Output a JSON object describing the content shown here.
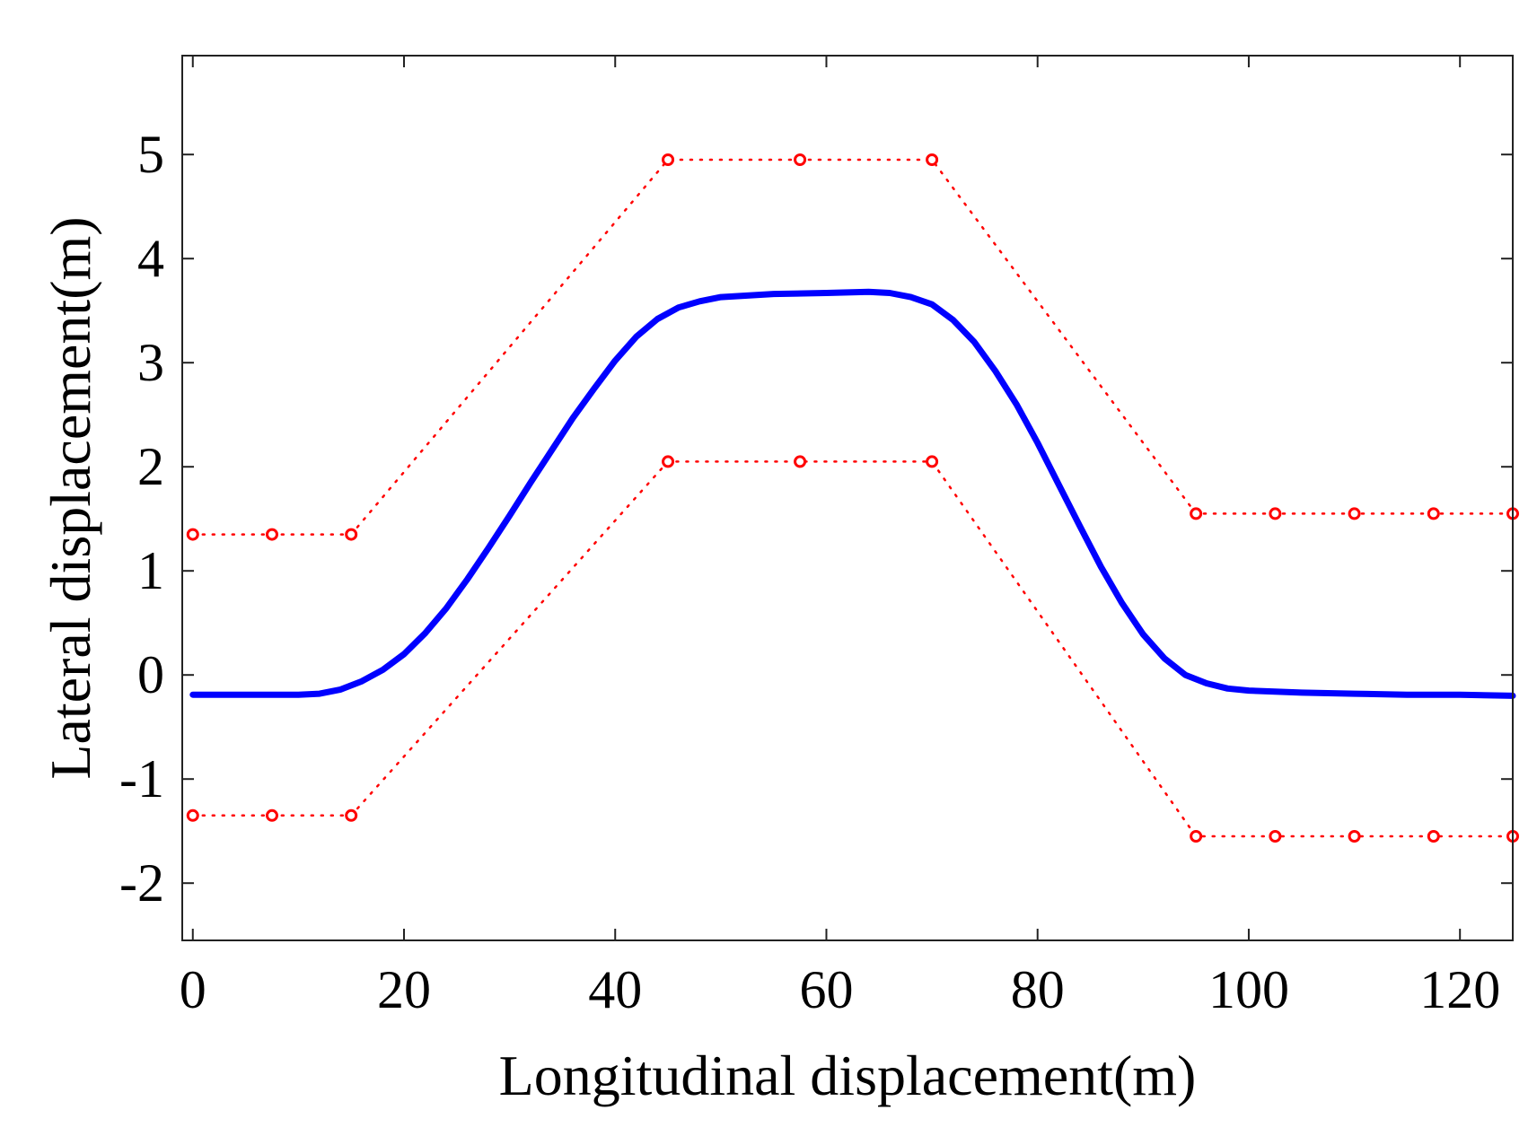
{
  "chart_data": {
    "type": "line",
    "xlabel": "Longitudinal displacement(m)",
    "ylabel": "Lateral displacement(m)",
    "xlim": [
      -1,
      125
    ],
    "ylim": [
      -2.55,
      5.95
    ],
    "xticks": [
      0,
      20,
      40,
      60,
      80,
      100,
      120
    ],
    "yticks": [
      -2,
      -1,
      0,
      1,
      2,
      3,
      4,
      5
    ],
    "xtick_labels": [
      "0",
      "20",
      "40",
      "60",
      "80",
      "100",
      "120"
    ],
    "ytick_labels": [
      "-2",
      "-1",
      "0",
      "1",
      "2",
      "3",
      "4",
      "5"
    ],
    "grid": false,
    "colors": {
      "trajectory": "#0000ff",
      "boundary": "#ff0000"
    },
    "series": [
      {
        "style": "solid",
        "x": [
          0,
          5,
          10,
          12,
          14,
          16,
          18,
          20,
          22,
          24,
          26,
          28,
          30,
          32,
          34,
          36,
          38,
          40,
          42,
          44,
          46,
          48,
          50,
          55,
          60,
          64,
          66,
          68,
          70,
          72,
          74,
          76,
          78,
          80,
          82,
          84,
          86,
          88,
          90,
          92,
          94,
          96,
          98,
          100,
          105,
          110,
          115,
          120,
          125
        ],
        "y": [
          -0.19,
          -0.19,
          -0.19,
          -0.18,
          -0.14,
          -0.06,
          0.05,
          0.2,
          0.4,
          0.64,
          0.92,
          1.22,
          1.53,
          1.85,
          2.16,
          2.47,
          2.75,
          3.02,
          3.25,
          3.42,
          3.53,
          3.59,
          3.63,
          3.66,
          3.67,
          3.68,
          3.67,
          3.63,
          3.56,
          3.41,
          3.2,
          2.92,
          2.6,
          2.23,
          1.83,
          1.43,
          1.04,
          0.69,
          0.39,
          0.16,
          0.0,
          -0.08,
          -0.13,
          -0.15,
          -0.17,
          -0.18,
          -0.19,
          -0.19,
          -0.2
        ]
      },
      {
        "style": "dotted-circle",
        "x": [
          0,
          7.5,
          15,
          45,
          57.5,
          70,
          95,
          102.5,
          110,
          117.5,
          125
        ],
        "y": [
          1.35,
          1.35,
          1.35,
          4.95,
          4.95,
          4.95,
          1.55,
          1.55,
          1.55,
          1.55,
          1.55
        ]
      },
      {
        "style": "dotted-circle",
        "x": [
          0,
          7.5,
          15,
          45,
          57.5,
          70,
          95,
          102.5,
          110,
          117.5,
          125
        ],
        "y": [
          -1.35,
          -1.35,
          -1.35,
          2.05,
          2.05,
          2.05,
          -1.55,
          -1.55,
          -1.55,
          -1.55,
          -1.55
        ]
      }
    ]
  }
}
